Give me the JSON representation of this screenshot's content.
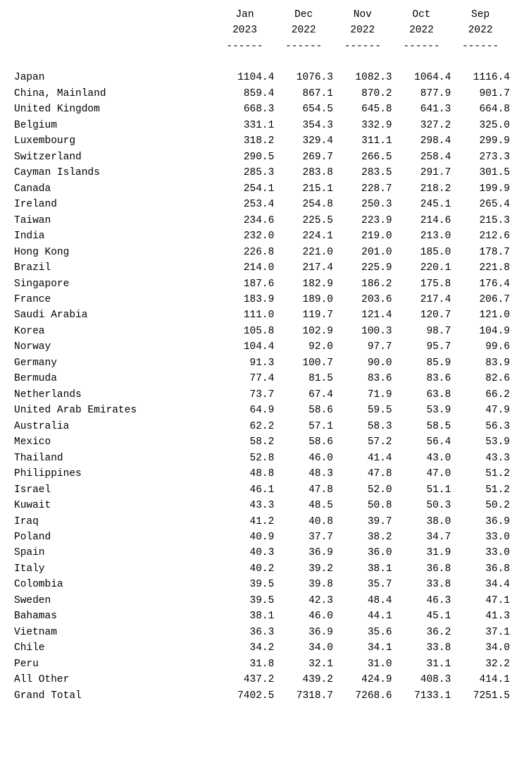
{
  "table": {
    "font_family": "Courier New, monospace",
    "font_size_pt": 11,
    "text_color": "#000000",
    "background_color": "#ffffff",
    "columns": [
      {
        "month": "Jan",
        "year": "2023"
      },
      {
        "month": "Dec",
        "year": "2022"
      },
      {
        "month": "Nov",
        "year": "2022"
      },
      {
        "month": "Oct",
        "year": "2022"
      },
      {
        "month": "Sep",
        "year": "2022"
      }
    ],
    "header_rule": "------",
    "rows": [
      {
        "label": "Japan",
        "v": [
          "1104.4",
          "1076.3",
          "1082.3",
          "1064.4",
          "1116.4"
        ]
      },
      {
        "label": "China, Mainland",
        "v": [
          "859.4",
          "867.1",
          "870.2",
          "877.9",
          "901.7"
        ]
      },
      {
        "label": "United Kingdom",
        "v": [
          "668.3",
          "654.5",
          "645.8",
          "641.3",
          "664.8"
        ]
      },
      {
        "label": "Belgium",
        "v": [
          "331.1",
          "354.3",
          "332.9",
          "327.2",
          "325.0"
        ]
      },
      {
        "label": "Luxembourg",
        "v": [
          "318.2",
          "329.4",
          "311.1",
          "298.4",
          "299.9"
        ]
      },
      {
        "label": "Switzerland",
        "v": [
          "290.5",
          "269.7",
          "266.5",
          "258.4",
          "273.3"
        ]
      },
      {
        "label": "Cayman Islands",
        "v": [
          "285.3",
          "283.8",
          "283.5",
          "291.7",
          "301.5"
        ]
      },
      {
        "label": "Canada",
        "v": [
          "254.1",
          "215.1",
          "228.7",
          "218.2",
          "199.9"
        ]
      },
      {
        "label": "Ireland",
        "v": [
          "253.4",
          "254.8",
          "250.3",
          "245.1",
          "265.4"
        ]
      },
      {
        "label": "Taiwan",
        "v": [
          "234.6",
          "225.5",
          "223.9",
          "214.6",
          "215.3"
        ]
      },
      {
        "label": "India",
        "v": [
          "232.0",
          "224.1",
          "219.0",
          "213.0",
          "212.6"
        ]
      },
      {
        "label": "Hong Kong",
        "v": [
          "226.8",
          "221.0",
          "201.0",
          "185.0",
          "178.7"
        ]
      },
      {
        "label": "Brazil",
        "v": [
          "214.0",
          "217.4",
          "225.9",
          "220.1",
          "221.8"
        ]
      },
      {
        "label": "Singapore",
        "v": [
          "187.6",
          "182.9",
          "186.2",
          "175.8",
          "176.4"
        ]
      },
      {
        "label": "France",
        "v": [
          "183.9",
          "189.0",
          "203.6",
          "217.4",
          "206.7"
        ]
      },
      {
        "label": "Saudi Arabia",
        "v": [
          "111.0",
          "119.7",
          "121.4",
          "120.7",
          "121.0"
        ]
      },
      {
        "label": "Korea",
        "v": [
          "105.8",
          "102.9",
          "100.3",
          "98.7",
          "104.9"
        ]
      },
      {
        "label": "Norway",
        "v": [
          "104.4",
          "92.0",
          "97.7",
          "95.7",
          "99.6"
        ]
      },
      {
        "label": "Germany",
        "v": [
          "91.3",
          "100.7",
          "90.0",
          "85.9",
          "83.9"
        ]
      },
      {
        "label": "Bermuda",
        "v": [
          "77.4",
          "81.5",
          "83.6",
          "83.6",
          "82.6"
        ]
      },
      {
        "label": "Netherlands",
        "v": [
          "73.7",
          "67.4",
          "71.9",
          "63.8",
          "66.2"
        ]
      },
      {
        "label": "United Arab Emirates",
        "v": [
          "64.9",
          "58.6",
          "59.5",
          "53.9",
          "47.9"
        ]
      },
      {
        "label": "Australia",
        "v": [
          "62.2",
          "57.1",
          "58.3",
          "58.5",
          "56.3"
        ]
      },
      {
        "label": "Mexico",
        "v": [
          "58.2",
          "58.6",
          "57.2",
          "56.4",
          "53.9"
        ]
      },
      {
        "label": "Thailand",
        "v": [
          "52.8",
          "46.0",
          "41.4",
          "43.0",
          "43.3"
        ]
      },
      {
        "label": "Philippines",
        "v": [
          "48.8",
          "48.3",
          "47.8",
          "47.0",
          "51.2"
        ]
      },
      {
        "label": "Israel",
        "v": [
          "46.1",
          "47.8",
          "52.0",
          "51.1",
          "51.2"
        ]
      },
      {
        "label": "Kuwait",
        "v": [
          "43.3",
          "48.5",
          "50.8",
          "50.3",
          "50.2"
        ]
      },
      {
        "label": "Iraq",
        "v": [
          "41.2",
          "40.8",
          "39.7",
          "38.0",
          "36.9"
        ]
      },
      {
        "label": "Poland",
        "v": [
          "40.9",
          "37.7",
          "38.2",
          "34.7",
          "33.0"
        ]
      },
      {
        "label": "Spain",
        "v": [
          "40.3",
          "36.9",
          "36.0",
          "31.9",
          "33.0"
        ]
      },
      {
        "label": "Italy",
        "v": [
          "40.2",
          "39.2",
          "38.1",
          "36.8",
          "36.8"
        ]
      },
      {
        "label": "Colombia",
        "v": [
          "39.5",
          "39.8",
          "35.7",
          "33.8",
          "34.4"
        ]
      },
      {
        "label": "Sweden",
        "v": [
          "39.5",
          "42.3",
          "48.4",
          "46.3",
          "47.1"
        ]
      },
      {
        "label": "Bahamas",
        "v": [
          "38.1",
          "46.0",
          "44.1",
          "45.1",
          "41.3"
        ]
      },
      {
        "label": "Vietnam",
        "v": [
          "36.3",
          "36.9",
          "35.6",
          "36.2",
          "37.1"
        ]
      },
      {
        "label": "Chile",
        "v": [
          "34.2",
          "34.0",
          "34.1",
          "33.8",
          "34.0"
        ]
      },
      {
        "label": "Peru",
        "v": [
          "31.8",
          "32.1",
          "31.0",
          "31.1",
          "32.2"
        ]
      },
      {
        "label": "All Other",
        "v": [
          "437.2",
          "439.2",
          "424.9",
          "408.3",
          "414.1"
        ]
      },
      {
        "label": "Grand Total",
        "v": [
          "7402.5",
          "7318.7",
          "7268.6",
          "7133.1",
          "7251.5"
        ]
      }
    ]
  }
}
